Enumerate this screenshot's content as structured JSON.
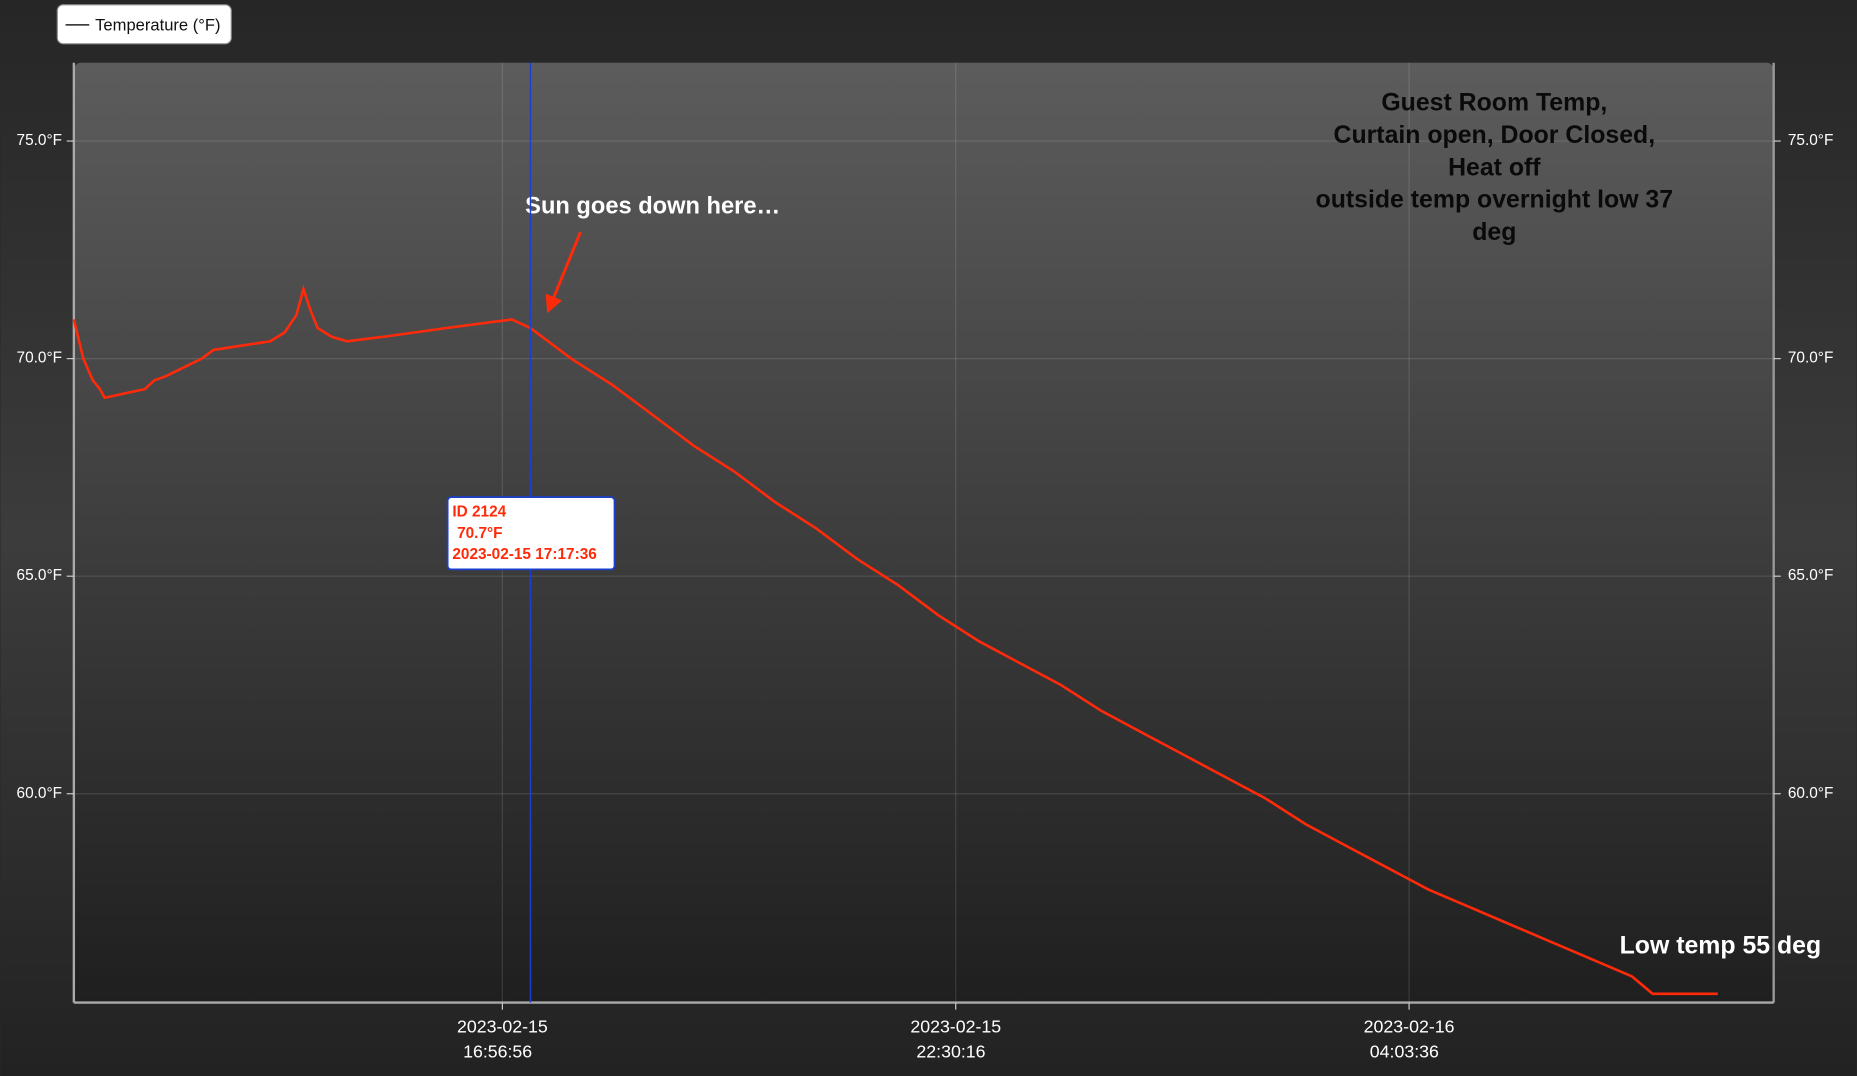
{
  "chart_data": {
    "type": "line",
    "x": [
      "2023-02-15 11:41:52",
      "2023-02-15 11:48:50",
      "2023-02-15 11:55:47",
      "2023-02-15 12:01:01",
      "2023-02-15 12:04:30",
      "2023-02-15 12:34:05",
      "2023-02-15 12:41:03",
      "2023-02-15 12:49:45",
      "2023-02-15 13:02:48",
      "2023-02-15 13:15:52",
      "2023-02-15 13:24:34",
      "2023-02-15 14:06:21",
      "2023-02-15 14:16:47",
      "2023-02-15 14:25:29",
      "2023-02-15 14:30:43",
      "2023-02-15 14:35:56",
      "2023-02-15 14:41:09",
      "2023-02-15 14:51:36",
      "2023-02-15 15:02:55",
      "2023-02-15 15:29:01",
      "2023-02-15 16:15:09",
      "2023-02-15 17:03:53",
      "2023-02-15 17:17:36",
      "2023-02-15 17:47:36",
      "2023-02-15 18:17:36",
      "2023-02-15 18:47:36",
      "2023-02-15 19:17:36",
      "2023-02-15 19:47:36",
      "2023-02-15 20:17:36",
      "2023-02-15 20:47:36",
      "2023-02-15 21:17:36",
      "2023-02-15 21:47:36",
      "2023-02-15 22:17:36",
      "2023-02-15 22:47:36",
      "2023-02-15 23:17:36",
      "2023-02-15 23:47:36",
      "2023-02-16 00:17:36",
      "2023-02-16 00:47:36",
      "2023-02-16 01:17:36",
      "2023-02-16 01:47:36",
      "2023-02-16 02:17:36",
      "2023-02-16 02:47:36",
      "2023-02-16 03:17:36",
      "2023-02-16 03:47:36",
      "2023-02-16 04:17:36",
      "2023-02-16 04:47:36",
      "2023-02-16 05:17:36",
      "2023-02-16 05:47:36",
      "2023-02-16 06:17:36",
      "2023-02-16 06:47:36",
      "2023-02-16 07:02:41",
      "2023-02-16 07:50:33"
    ],
    "series": [
      {
        "name": "Temperature (°F)",
        "color": "#ff2a0a",
        "values": [
          70.9,
          70.0,
          69.5,
          69.3,
          69.1,
          69.3,
          69.5,
          69.6,
          69.8,
          70.0,
          70.2,
          70.4,
          70.6,
          71.0,
          71.6,
          71.1,
          70.7,
          70.5,
          70.4,
          70.5,
          70.7,
          70.9,
          70.7,
          70.0,
          69.4,
          68.7,
          68.0,
          67.4,
          66.7,
          66.1,
          65.4,
          64.8,
          64.1,
          63.5,
          63.0,
          62.5,
          61.9,
          61.4,
          60.9,
          60.4,
          59.9,
          59.3,
          58.8,
          58.3,
          57.8,
          57.4,
          57.0,
          56.6,
          56.2,
          55.8,
          55.4,
          55.4
        ]
      }
    ],
    "xlim": [
      "2023-02-15 11:41:52",
      "2023-02-16 08:31:40"
    ],
    "xticks": [
      "2023-02-15 16:56:56",
      "2023-02-15 22:30:16",
      "2023-02-16 04:03:36"
    ],
    "ylim": [
      55.2,
      76.8
    ],
    "yticks": [
      {
        "value": 60,
        "label": "60.0°F"
      },
      {
        "value": 65,
        "label": "65.0°F"
      },
      {
        "value": 70,
        "label": "70.0°F"
      },
      {
        "value": 75,
        "label": "75.0°F"
      }
    ],
    "grid": true,
    "legend": "top-left",
    "tooltip": {
      "id_label": "ID 2124",
      "value": 70.7,
      "value_label": "70.7°F",
      "x": "2023-02-15 17:17:36",
      "color": "#1a3fd1"
    },
    "annotations": {
      "sunset": "Sun goes down here…",
      "description": [
        "Guest Room Temp,",
        "Curtain open, Door Closed,",
        "Heat off",
        "outside temp overnight low 37",
        "deg"
      ],
      "low": "Low temp 55 deg"
    }
  }
}
